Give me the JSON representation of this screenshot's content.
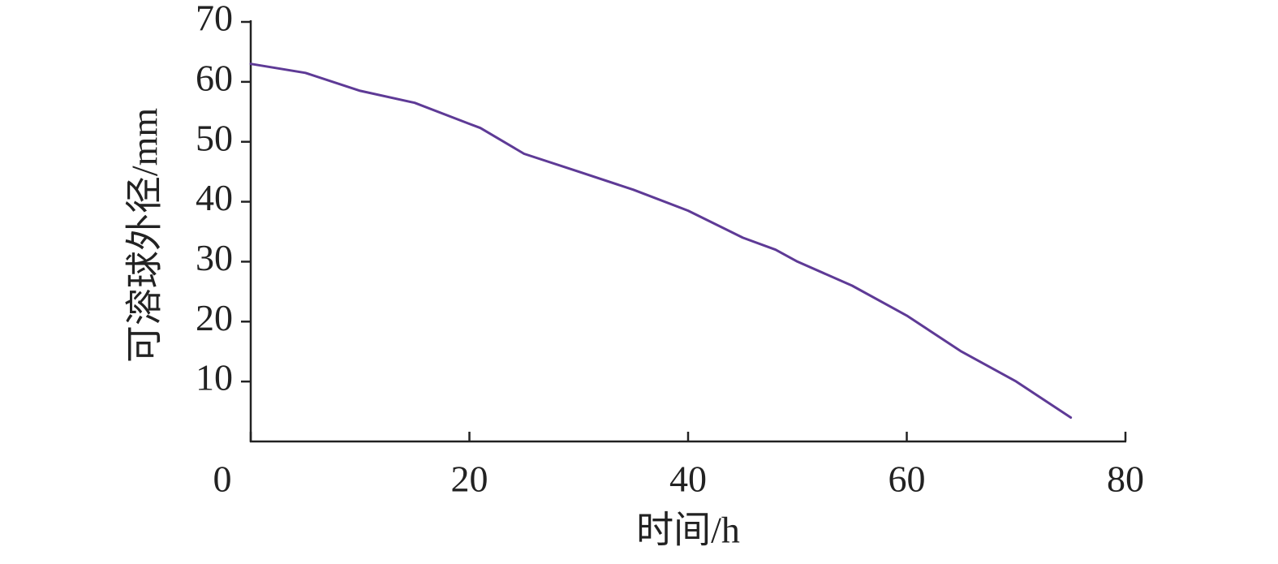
{
  "chart_data": {
    "type": "line",
    "x_label": "时间/h",
    "y_label": "可溶球外径/mm",
    "x": [
      0,
      5,
      10,
      15,
      20,
      21,
      25,
      30,
      35,
      40,
      45,
      48,
      50,
      55,
      60,
      65,
      70,
      75
    ],
    "values": [
      63,
      61.5,
      58.5,
      56.5,
      53,
      52.3,
      48,
      45,
      42,
      38.5,
      34,
      32,
      30,
      26,
      21,
      15,
      10,
      4
    ],
    "color": "#5e3a96",
    "xlim": [
      0,
      80
    ],
    "xticks": [
      0,
      20,
      40,
      60,
      80
    ],
    "ylim": [
      0,
      70
    ],
    "yticks": [
      10,
      20,
      30,
      40,
      50,
      60,
      70
    ]
  }
}
